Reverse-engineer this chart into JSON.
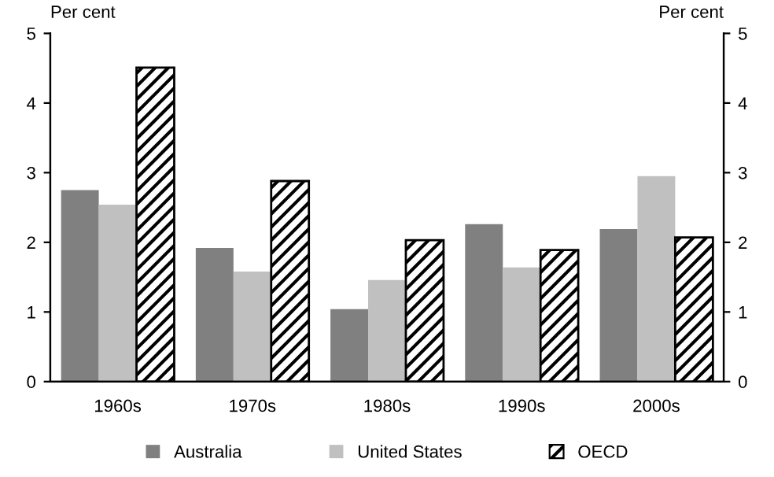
{
  "chart_data": {
    "type": "bar",
    "categories": [
      "1960s",
      "1970s",
      "1980s",
      "1990s",
      "2000s"
    ],
    "series": [
      {
        "name": "Australia",
        "color": "#808080",
        "values": [
          2.75,
          1.92,
          1.04,
          2.26,
          2.19
        ]
      },
      {
        "name": "United States",
        "color": "#c0c0c0",
        "values": [
          2.54,
          1.58,
          1.46,
          1.64,
          2.95
        ]
      },
      {
        "name": "OECD",
        "color": "#000000",
        "values": [
          4.51,
          2.88,
          2.03,
          1.89,
          2.07
        ]
      }
    ],
    "ylabel": "Per cent",
    "y2label": "Per cent",
    "ylim": [
      0,
      5
    ],
    "yticks": [
      0,
      1,
      2,
      3,
      4,
      5
    ],
    "y2lim": [
      0,
      5
    ],
    "y2ticks": [
      0,
      1,
      2,
      3,
      4,
      5
    ],
    "legend": "bottom",
    "grid": false
  }
}
